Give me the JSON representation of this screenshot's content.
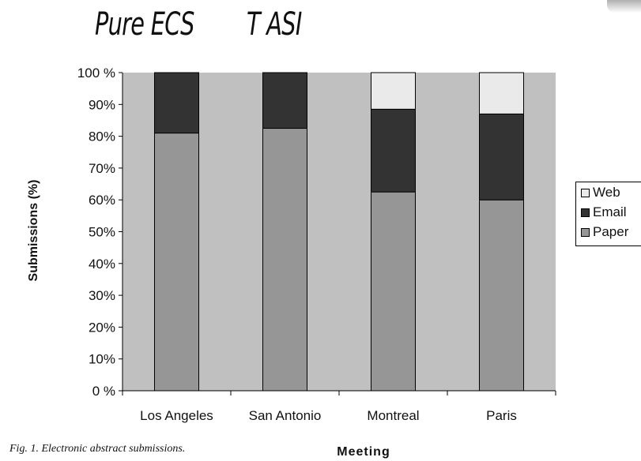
{
  "header": {
    "title_left": "Pure ECS",
    "title_right": "T ASI"
  },
  "caption": "Fig. 1. Electronic abstract submissions.",
  "colors": {
    "plot_area": "#c0c0c0",
    "Paper": "#969696",
    "Email": "#333333",
    "Web": "#eaeaea"
  },
  "chart_data": {
    "type": "bar",
    "stacked": true,
    "categories": [
      "Los Angeles",
      "San Antonio",
      "Montreal",
      "Paris"
    ],
    "series": [
      {
        "name": "Paper",
        "values": [
          81,
          82.5,
          62.5,
          60
        ]
      },
      {
        "name": "Email",
        "values": [
          19,
          17.5,
          26,
          27
        ]
      },
      {
        "name": "Web",
        "values": [
          0,
          0,
          11.5,
          13
        ]
      }
    ],
    "xlabel": "Meeting",
    "ylabel": "Submissions (%)",
    "ylim": [
      0,
      100
    ],
    "yticks": [
      "0 %",
      "10%",
      "20%",
      "30%",
      "40%",
      "50%",
      "60%",
      "70%",
      "80%",
      "90%",
      "100 %"
    ],
    "legend": [
      "Web",
      "Email",
      "Paper"
    ],
    "legend_position": "right",
    "grid": false
  }
}
